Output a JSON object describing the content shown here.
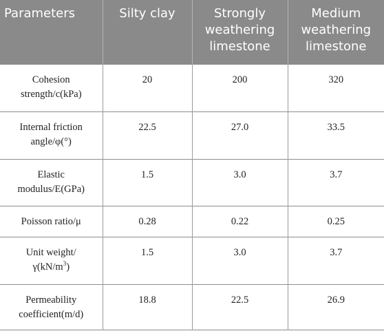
{
  "table": {
    "headers": [
      "Parameters",
      "Silty clay",
      "Strongly weathering limestone",
      "Medium weathering limestone"
    ],
    "rows": [
      {
        "parameter": "Cohesion strength/c(kPa)",
        "silty_clay": "20",
        "strongly_weathering": "200",
        "medium_weathering": "320"
      },
      {
        "parameter": "Internal friction angle/φ(°)",
        "silty_clay": "22.5",
        "strongly_weathering": "27.0",
        "medium_weathering": "33.5"
      },
      {
        "parameter": "Elastic modulus/E(GPa)",
        "silty_clay": "1.5",
        "strongly_weathering": "3.0",
        "medium_weathering": "3.7"
      },
      {
        "parameter": "Poisson ratio/μ",
        "silty_clay": "0.28",
        "strongly_weathering": "0.22",
        "medium_weathering": "0.25"
      },
      {
        "parameter": "Unit weight/γ(kN/m",
        "parameter_sup": "3",
        "parameter_tail": ")",
        "silty_clay": "1.5",
        "strongly_weathering": "3.0",
        "medium_weathering": "3.7"
      },
      {
        "parameter": "Permeability coefficient(m/d)",
        "silty_clay": "18.8",
        "strongly_weathering": "22.5",
        "medium_weathering": "26.9"
      }
    ]
  },
  "colors": {
    "header_bg": "#8a8a8a",
    "header_text": "#ffffff",
    "body_text": "#222222",
    "rule": "#8c8c8c"
  }
}
